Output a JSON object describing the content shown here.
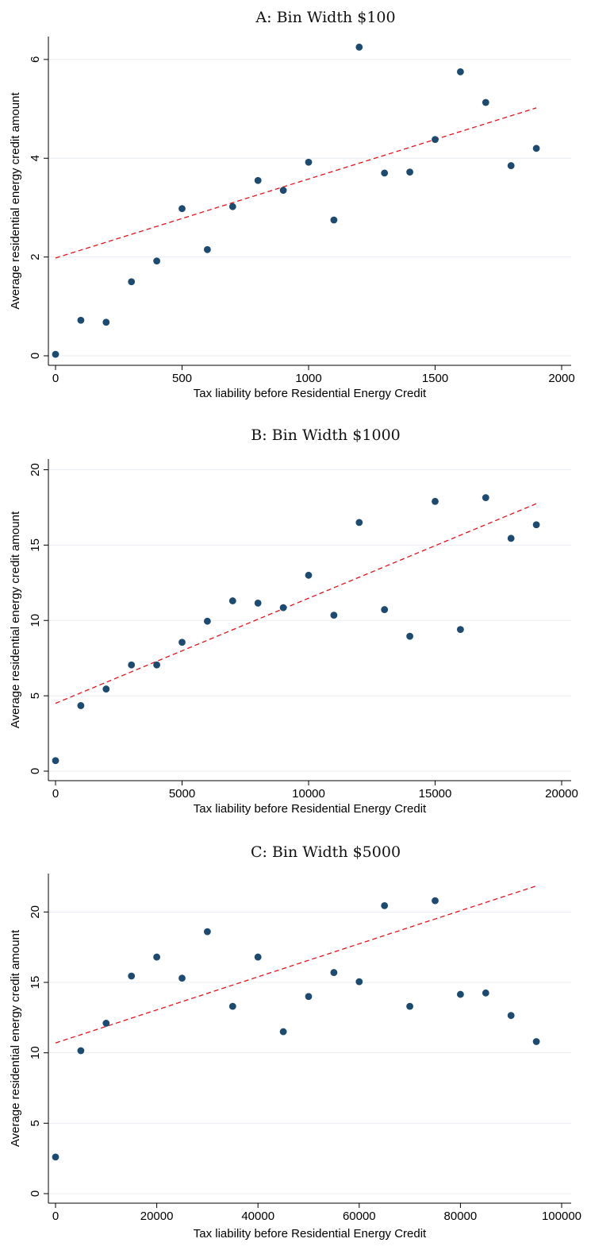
{
  "chart_data": [
    {
      "type": "scatter",
      "title": "A: Bin Width $100",
      "xlabel": "Tax liability before Residential Energy Credit",
      "ylabel": "Average residential energy credit amount",
      "xlim": [
        0,
        2000
      ],
      "ylim": [
        0,
        6.4
      ],
      "xticks": [
        0,
        500,
        1000,
        1500,
        2000
      ],
      "yticks": [
        0,
        2,
        4,
        6
      ],
      "grid": true,
      "points": {
        "x": [
          0,
          100,
          200,
          300,
          400,
          500,
          600,
          700,
          800,
          900,
          1000,
          1100,
          1200,
          1300,
          1400,
          1500,
          1600,
          1700,
          1800,
          1900
        ],
        "y": [
          0.03,
          0.72,
          0.68,
          1.5,
          1.92,
          2.98,
          2.15,
          3.02,
          3.55,
          3.35,
          3.92,
          2.75,
          6.25,
          3.7,
          3.72,
          4.38,
          5.75,
          5.13,
          3.85,
          4.2
        ]
      },
      "fit_line": {
        "x": [
          0,
          1900
        ],
        "y": [
          1.98,
          5.02
        ],
        "style": "dashed",
        "color": "#e8121b"
      },
      "point_color": "#1c4a70"
    },
    {
      "type": "scatter",
      "title": "B: Bin Width $1000",
      "xlabel": "Tax liability before Residential Energy Credit",
      "ylabel": "Average residential energy credit amount",
      "xlim": [
        0,
        20000
      ],
      "ylim": [
        0,
        20.5
      ],
      "xticks": [
        0,
        5000,
        10000,
        15000,
        20000
      ],
      "yticks": [
        0,
        5,
        10,
        15,
        20
      ],
      "grid": true,
      "points": {
        "x": [
          0,
          1000,
          2000,
          3000,
          4000,
          5000,
          6000,
          7000,
          8000,
          9000,
          10000,
          11000,
          12000,
          13000,
          14000,
          15000,
          16000,
          17000,
          18000,
          19000
        ],
        "y": [
          0.7,
          4.35,
          5.45,
          7.05,
          7.05,
          8.55,
          9.95,
          11.3,
          11.15,
          10.85,
          13.0,
          10.35,
          16.5,
          10.72,
          8.95,
          17.9,
          9.4,
          18.15,
          15.45,
          16.35
        ]
      },
      "fit_line": {
        "x": [
          0,
          19000
        ],
        "y": [
          4.5,
          17.75
        ],
        "style": "dashed",
        "color": "#e8121b"
      },
      "point_color": "#1c4a70"
    },
    {
      "type": "scatter",
      "title": "C: Bin Width $5000",
      "xlabel": "Tax liability before Residential Energy Credit",
      "ylabel": "Average residential energy credit amount",
      "xlim": [
        0,
        100000
      ],
      "ylim": [
        0,
        22.5
      ],
      "xticks": [
        0,
        20000,
        40000,
        60000,
        80000,
        100000
      ],
      "yticks": [
        0,
        5,
        10,
        15,
        20
      ],
      "grid": true,
      "points": {
        "x": [
          0,
          5000,
          10000,
          15000,
          20000,
          25000,
          30000,
          35000,
          40000,
          45000,
          50000,
          55000,
          60000,
          65000,
          70000,
          75000,
          80000,
          85000,
          90000,
          95000
        ],
        "y": [
          2.6,
          10.15,
          12.1,
          15.45,
          16.8,
          15.3,
          18.6,
          13.3,
          16.8,
          11.5,
          14.0,
          15.7,
          15.05,
          20.45,
          13.3,
          20.8,
          14.15,
          14.25,
          12.65,
          10.8
        ]
      },
      "fit_line": {
        "x": [
          0,
          95000
        ],
        "y": [
          10.7,
          21.85
        ],
        "style": "dashed",
        "color": "#e8121b"
      },
      "point_color": "#1c4a70"
    }
  ]
}
